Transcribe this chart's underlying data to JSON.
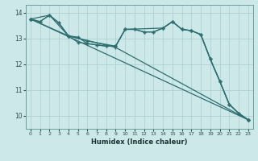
{
  "xlabel": "Humidex (Indice chaleur)",
  "xlim": [
    -0.5,
    23.5
  ],
  "ylim": [
    9.5,
    14.3
  ],
  "yticks": [
    10,
    11,
    12,
    13,
    14
  ],
  "xticks": [
    0,
    1,
    2,
    3,
    4,
    5,
    6,
    7,
    8,
    9,
    10,
    11,
    12,
    13,
    14,
    15,
    16,
    17,
    18,
    19,
    20,
    21,
    22,
    23
  ],
  "bg_color": "#cce8e8",
  "grid_color": "#aacccc",
  "line_color": "#2d6e6e",
  "series": [
    {
      "x": [
        0,
        1,
        2,
        3,
        4,
        5,
        6,
        7,
        8,
        9,
        10,
        11,
        12,
        13,
        14,
        15,
        16,
        17,
        18,
        19,
        20,
        21,
        22,
        23
      ],
      "y": [
        13.75,
        13.65,
        13.9,
        13.6,
        13.1,
        13.05,
        12.8,
        12.75,
        12.7,
        12.7,
        13.35,
        13.35,
        13.25,
        13.25,
        13.4,
        13.65,
        13.35,
        13.3,
        13.15,
        12.2,
        11.35,
        10.45,
        10.1,
        9.85
      ]
    },
    {
      "x": [
        0,
        1,
        2,
        3,
        4,
        5,
        6,
        7,
        8,
        9,
        10,
        11,
        12,
        13,
        14,
        15,
        16,
        17,
        18,
        19,
        20,
        21,
        22,
        23
      ],
      "y": [
        13.75,
        13.65,
        13.9,
        13.6,
        13.1,
        12.85,
        12.8,
        12.75,
        12.7,
        12.7,
        13.35,
        13.35,
        13.25,
        13.25,
        13.4,
        13.65,
        13.35,
        13.3,
        13.15,
        12.2,
        11.35,
        10.45,
        10.1,
        9.85
      ]
    },
    {
      "x": [
        0,
        23
      ],
      "y": [
        13.75,
        9.85
      ]
    },
    {
      "x": [
        0,
        4,
        9,
        23
      ],
      "y": [
        13.75,
        13.1,
        12.65,
        9.85
      ]
    },
    {
      "x": [
        0,
        2,
        4,
        6,
        9,
        10,
        14,
        15,
        16,
        17,
        18,
        19,
        20,
        21,
        22,
        23
      ],
      "y": [
        13.75,
        13.9,
        13.1,
        12.9,
        12.7,
        13.35,
        13.4,
        13.65,
        13.35,
        13.3,
        13.15,
        12.2,
        11.35,
        10.45,
        10.1,
        9.85
      ]
    }
  ]
}
